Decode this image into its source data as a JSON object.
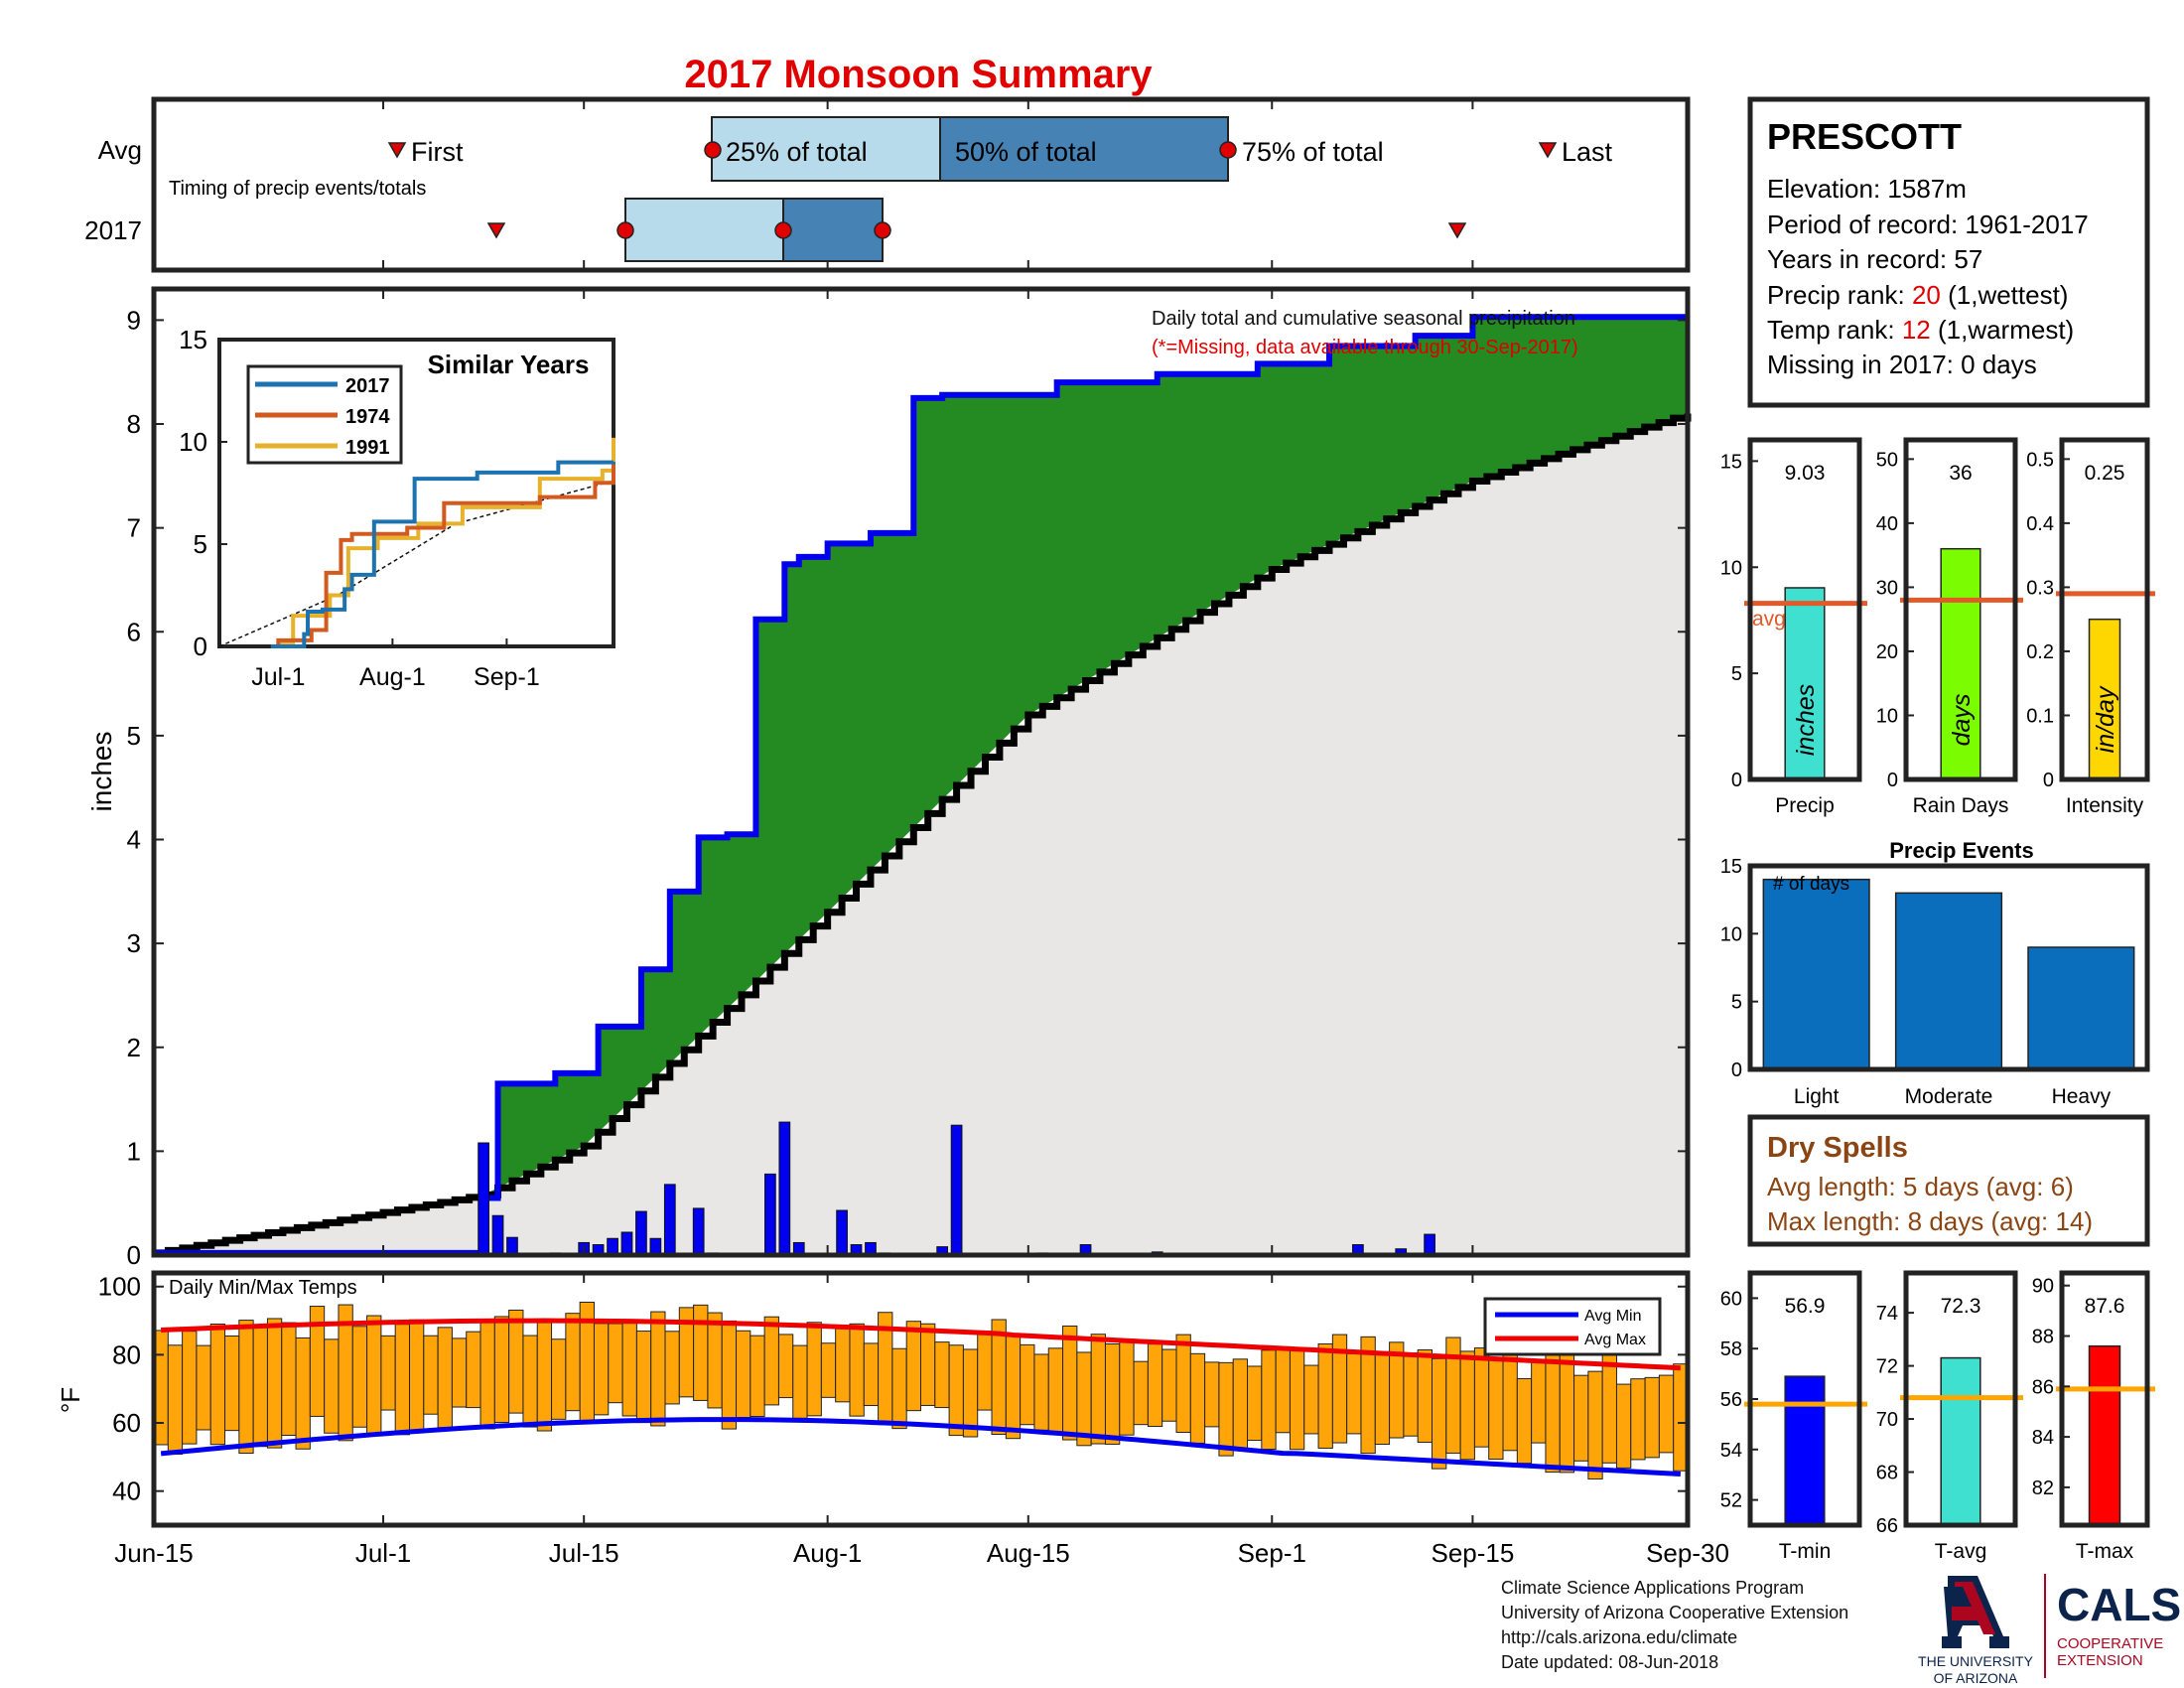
{
  "title": "2017 Monsoon Summary",
  "colors": {
    "title": "#e00000",
    "green": "#238b22",
    "blue": "#0000ee",
    "gold": "#b8860b",
    "normal_fill": "#e8e7e6",
    "light_box": "#b7dbea",
    "dark_box": "#4682b4",
    "red_marker": "#e00000",
    "orange": "#e2592a",
    "temp_bar": "#ffa50a",
    "bar_blue": "#0a6ebd",
    "dry_brown": "#8b4513",
    "ua_red": "#ab0520",
    "ua_navy": "#0c234b",
    "precip_bar": "#40e0d0",
    "rain_bar": "#7cfc00",
    "intensity_bar": "#ffd700",
    "tmin_bar": "#0000ff",
    "tavg_bar": "#40e0d0",
    "tmax_bar": "#ff0000",
    "avg_line": "#ffa500"
  },
  "timing": {
    "row_avg": "Avg",
    "row_2017": "2017",
    "subtitle": "Timing of precip events/totals",
    "first_label": "First",
    "last_label": "Last",
    "p25_label": "25% of total",
    "p50_label": "50% of total",
    "p75_label": "75% of total",
    "avg": {
      "first": "Jul-2",
      "p25": "Jul-22",
      "p50": "Aug-6",
      "p75": "Aug-25",
      "last": "Sep-23"
    },
    "y2017": {
      "first": "Jul-9",
      "p25": "Jul-18",
      "p50": "Jul-28",
      "p75": "Aug-3",
      "last": "Sep-14"
    }
  },
  "info": {
    "station": "PRESCOTT",
    "elevation": "Elevation: 1587m",
    "period": "Period of record: 1961-2017",
    "years": "Years in record: 57",
    "precip_rank_pre": "Precip rank: ",
    "precip_rank_val": "20",
    "precip_rank_post": " (1,wettest)",
    "temp_rank_pre": "Temp rank: ",
    "temp_rank_val": "12",
    "temp_rank_post": " (1,warmest)",
    "missing": "Missing in 2017: 0 days"
  },
  "main_chart": {
    "note": "Daily total and cumulative seasonal precipitation",
    "missing_note": "(*=Missing, data available through 30-Sep-2017)",
    "ylabel": "inches",
    "yticks": [
      "0",
      "1",
      "2",
      "3",
      "4",
      "5",
      "6",
      "7",
      "8",
      "9"
    ],
    "xticks": [
      "Jun-15",
      "Jul-1",
      "Jul-15",
      "Aug-1",
      "Aug-15",
      "Sep-1",
      "Sep-15",
      "Sep-30"
    ]
  },
  "similar": {
    "title": "Similar Years",
    "legend": [
      "2017",
      "1974",
      "1991"
    ],
    "yticks": [
      "0",
      "5",
      "10",
      "15"
    ],
    "xticks": [
      "Jul-1",
      "Aug-1",
      "Sep-1"
    ]
  },
  "temp_chart": {
    "label": "Daily Min/Max Temps",
    "ylabel": "°F",
    "yticks": [
      "40",
      "60",
      "80",
      "100"
    ],
    "legend_min": "Avg Min",
    "legend_max": "Avg Max"
  },
  "stats": {
    "precip": {
      "value": "9.03",
      "unit": "inches",
      "label": "Precip",
      "avg_label": "avg",
      "yticks": [
        "0",
        "5",
        "10",
        "15"
      ]
    },
    "rain_days": {
      "value": "36",
      "unit": "days",
      "label": "Rain Days",
      "yticks": [
        "0",
        "10",
        "20",
        "30",
        "40",
        "50"
      ]
    },
    "intensity": {
      "value": "0.25",
      "unit": "in/day",
      "label": "Intensity",
      "yticks": [
        "0",
        "0.1",
        "0.2",
        "0.3",
        "0.4",
        "0.5"
      ]
    }
  },
  "events": {
    "title": "Precip Events",
    "ylabel_note": "# of days",
    "categories": [
      "Light",
      "Moderate",
      "Heavy"
    ],
    "yticks": [
      "0",
      "5",
      "10",
      "15"
    ]
  },
  "dry_spells": {
    "title": "Dry Spells",
    "avg_length": "Avg length: 5 days (avg: 6)",
    "max_length": "Max length: 8 days (avg: 14)"
  },
  "temp_stats": {
    "tmin": {
      "value": "56.9",
      "label": "T-min",
      "yticks": [
        "52",
        "54",
        "56",
        "58",
        "60"
      ]
    },
    "tavg": {
      "value": "72.3",
      "label": "T-avg",
      "yticks": [
        "66",
        "68",
        "70",
        "72",
        "74"
      ]
    },
    "tmax": {
      "value": "87.6",
      "label": "T-max",
      "yticks": [
        "82",
        "84",
        "86",
        "88",
        "90"
      ]
    }
  },
  "footer": {
    "line1": "Climate Science Applications Program",
    "line2": "University of Arizona Cooperative Extension",
    "line3": "http://cals.arizona.edu/climate",
    "line4": "Date updated: 08-Jun-2018"
  },
  "logos": {
    "ua_line1": "THE UNIVERSITY",
    "ua_line2": "OF ARIZONA",
    "cals": "CALS",
    "cals_sub1": "COOPERATIVE",
    "cals_sub2": "EXTENSION"
  },
  "chart_data": [
    {
      "type": "line",
      "title": "",
      "ylabel": "inches",
      "ylim": [
        0,
        9.3
      ],
      "xlim": [
        "2017-06-15",
        "2017-09-30"
      ],
      "series": [
        {
          "name": "",
          "description_color": "blue",
          "x": [
            "2017-06-15",
            "2017-07-08",
            "2017-07-09",
            "2017-07-13",
            "2017-07-16",
            "2017-07-19",
            "2017-07-21",
            "2017-07-23",
            "2017-07-25",
            "2017-07-27",
            "2017-07-29",
            "2017-07-30",
            "2017-08-01",
            "2017-08-02",
            "2017-08-04",
            "2017-08-07",
            "2017-08-09",
            "2017-08-17",
            "2017-08-24",
            "2017-08-31",
            "2017-09-05",
            "2017-09-11",
            "2017-09-15",
            "2017-09-30"
          ],
          "y": [
            0.02,
            0.55,
            1.65,
            1.75,
            2.2,
            2.75,
            3.5,
            4.02,
            4.05,
            6.12,
            6.65,
            6.72,
            6.85,
            6.85,
            6.95,
            8.25,
            8.28,
            8.4,
            8.48,
            8.58,
            8.75,
            8.85,
            9.03,
            9.03
          ]
        },
        {
          "name": "",
          "description_color": "black",
          "x": [
            "2017-06-15",
            "2017-07-08",
            "2017-07-15",
            "2017-08-01",
            "2017-08-15",
            "2017-09-01",
            "2017-09-15",
            "2017-09-30"
          ],
          "y": [
            0.02,
            0.58,
            1.05,
            3.3,
            5.2,
            6.6,
            7.45,
            8.1
          ]
        }
      ],
      "daily_precip": {
        "x": [
          "2017-07-08",
          "2017-07-09",
          "2017-07-10",
          "2017-07-13",
          "2017-07-15",
          "2017-07-16",
          "2017-07-17",
          "2017-07-18",
          "2017-07-19",
          "2017-07-20",
          "2017-07-21",
          "2017-07-23",
          "2017-07-24",
          "2017-07-28",
          "2017-07-29",
          "2017-07-30",
          "2017-08-02",
          "2017-08-03",
          "2017-08-04",
          "2017-08-05",
          "2017-08-09",
          "2017-08-10",
          "2017-08-16",
          "2017-08-19",
          "2017-08-24",
          "2017-09-07",
          "2017-09-10",
          "2017-09-12"
        ],
        "y": [
          1.08,
          0.38,
          0.17,
          0.02,
          0.12,
          0.1,
          0.16,
          0.22,
          0.42,
          0.16,
          0.68,
          0.45,
          0.02,
          0.78,
          1.28,
          0.12,
          0.43,
          0.1,
          0.12,
          0.02,
          0.08,
          1.25,
          0.02,
          0.1,
          0.03,
          0.1,
          0.06,
          0.2
        ]
      }
    },
    {
      "type": "line",
      "title": "Similar Years",
      "ylim": [
        0,
        15
      ],
      "series": [
        {
          "name": "2017",
          "x": [
            "Jun-15",
            "Jul-8",
            "Jul-9",
            "Jul-13",
            "Jul-19",
            "Jul-21",
            "Jul-27",
            "Aug-7",
            "Aug-24",
            "Sep-15",
            "Sep-30"
          ],
          "y": [
            0.0,
            0.6,
            1.7,
            1.8,
            2.8,
            3.5,
            6.1,
            8.2,
            8.5,
            9.0,
            9.03
          ]
        },
        {
          "name": "1974",
          "x": [
            "Jun-15",
            "Jul-1",
            "Jul-10",
            "Jul-14",
            "Jul-18",
            "Jul-21",
            "Aug-5",
            "Aug-15",
            "Sep-10",
            "Sep-25",
            "Sep-30"
          ],
          "y": [
            0.0,
            0.3,
            0.8,
            3.6,
            5.2,
            5.5,
            5.8,
            7.0,
            7.3,
            8.0,
            9.0
          ]
        },
        {
          "name": "1991",
          "x": [
            "Jun-15",
            "Jul-1",
            "Jul-5",
            "Jul-15",
            "Jul-20",
            "Jul-28",
            "Aug-8",
            "Aug-20",
            "Sep-10",
            "Sep-27",
            "Sep-30"
          ],
          "y": [
            0.0,
            0.2,
            1.5,
            2.5,
            4.8,
            5.3,
            6.0,
            6.8,
            8.2,
            8.6,
            10.2
          ]
        }
      ]
    },
    {
      "type": "bar",
      "title": "Daily Min/Max Temps",
      "ylabel": "°F",
      "ylim": [
        30,
        104
      ],
      "series": [
        {
          "name": "Avg Min",
          "y_range": [
            51,
            61
          ]
        },
        {
          "name": "Avg Max",
          "y_range": [
            78,
            90
          ]
        }
      ]
    },
    {
      "type": "bar",
      "categories": [
        "Precip"
      ],
      "values": [
        9.03
      ],
      "ylim": [
        0,
        16
      ],
      "avg": 8.3
    },
    {
      "type": "bar",
      "categories": [
        "Rain Days"
      ],
      "values": [
        36
      ],
      "ylim": [
        0,
        53
      ],
      "avg": 28
    },
    {
      "type": "bar",
      "categories": [
        "Intensity"
      ],
      "values": [
        0.25
      ],
      "ylim": [
        0,
        0.53
      ],
      "avg": 0.29
    },
    {
      "type": "bar",
      "title": "Precip Events",
      "categories": [
        "Light",
        "Moderate",
        "Heavy"
      ],
      "values": [
        14,
        13,
        9
      ],
      "ylim": [
        0,
        15
      ]
    },
    {
      "type": "bar",
      "categories": [
        "T-min"
      ],
      "values": [
        56.9
      ],
      "ylim": [
        51,
        61
      ],
      "avg": 55.8
    },
    {
      "type": "bar",
      "categories": [
        "T-avg"
      ],
      "values": [
        72.3
      ],
      "ylim": [
        66,
        75.5
      ],
      "avg": 70.8
    },
    {
      "type": "bar",
      "categories": [
        "T-max"
      ],
      "values": [
        87.6
      ],
      "ylim": [
        80.5,
        90.5
      ],
      "avg": 85.9
    }
  ]
}
